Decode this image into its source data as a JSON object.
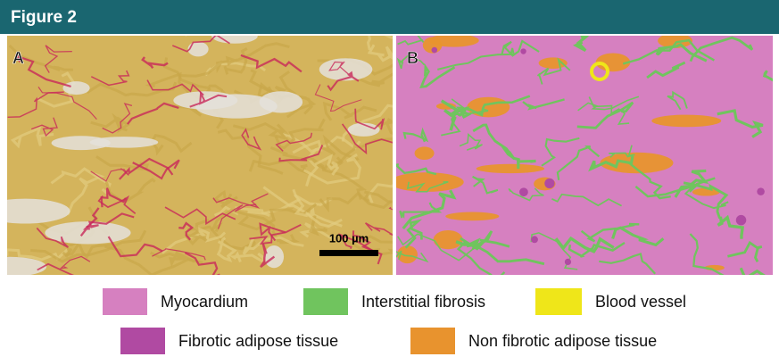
{
  "header": {
    "title": "Figure 2"
  },
  "panels": [
    {
      "label": "A",
      "scale_bar": "100 µm"
    },
    {
      "label": "B"
    }
  ],
  "legend": [
    {
      "label": "Myocardium",
      "color": "#d680c0"
    },
    {
      "label": "Interstitial fibrosis",
      "color": "#70c45e"
    },
    {
      "label": "Blood vessel",
      "color": "#efe619"
    },
    {
      "label": "Fibrotic adipose tissue",
      "color": "#b04aa2"
    },
    {
      "label": "Non fibrotic adipose tissue",
      "color": "#e8932e"
    }
  ]
}
